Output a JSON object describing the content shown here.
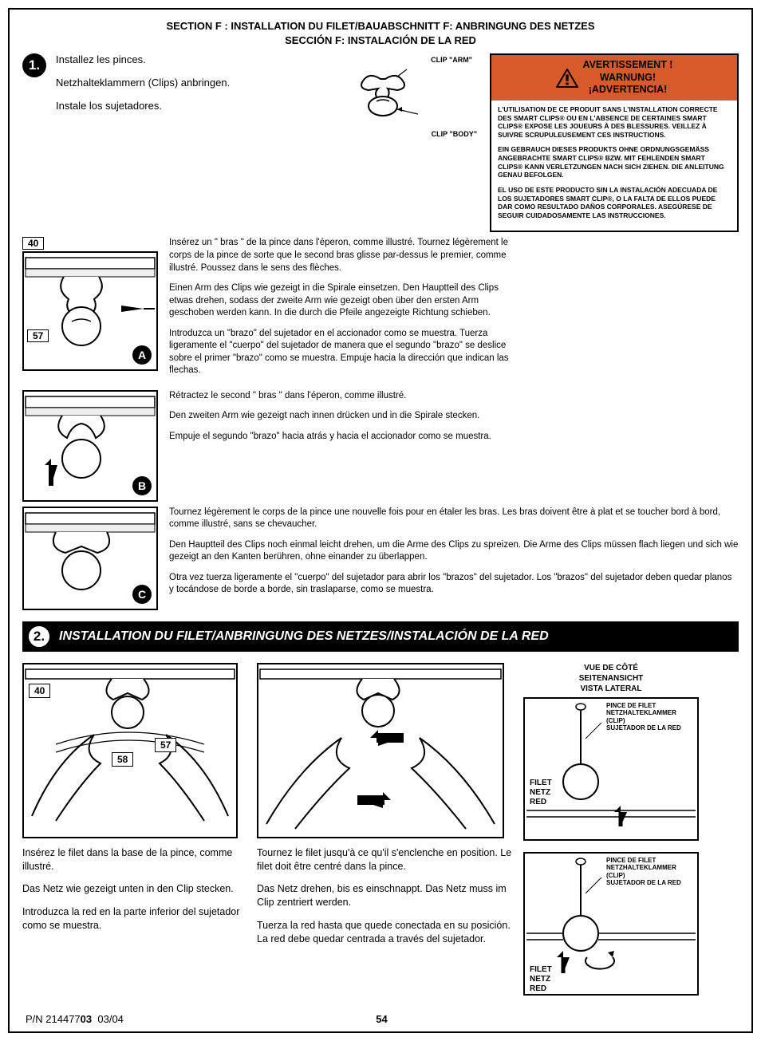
{
  "header": {
    "line1": "SECTION F : INSTALLATION DU FILET/BAUABSCHNITT F: ANBRINGUNG DES NETZES",
    "line2": "SECCIÓN F: INSTALACIÓN DE LA RED"
  },
  "step1": {
    "num": "1.",
    "intro": {
      "fr": "Installez les pinces.",
      "de": "Netzhalteklammern (Clips) anbringen.",
      "es": "Instale los sujetadores."
    },
    "clip": {
      "arm_label": "CLIP \"ARM\"",
      "body_label": "CLIP \"BODY\""
    },
    "warning": {
      "title": "AVERTISSEMENT ! WARNUNG! ¡ADVERTENCIA!",
      "fr": "L'UTILISATION DE CE PRODUIT SANS L'INSTALLATION CORRECTE DES SMART CLIPS® OU EN L'ABSENCE DE CERTAINES SMART CLIPS® EXPOSE LES JOUEURS À DES BLESSURES. VEILLEZ À SUIVRE SCRUPULEUSEMENT CES INSTRUCTIONS.",
      "de": "EIN GEBRAUCH DIESES PRODUKTS OHNE ORDNUNGSGEMÄSS ANGEBRACHTE SMART CLIPS® BZW. MIT FEHLENDEN SMART CLIPS® KANN VERLETZUNGEN NACH SICH ZIEHEN. DIE ANLEITUNG GENAU BEFOLGEN.",
      "es": "EL USO DE ESTE PRODUCTO SIN LA INSTALACIÓN ADECUADA DE LOS SUJETADORES SMART CLIP®, O LA FALTA DE ELLOS PUEDE DAR COMO RESULTADO DAÑOS CORPORALES. ASEGÚRESE DE SEGUIR CUIDADOSAMENTE LAS INSTRUCCIONES."
    },
    "a": {
      "part40": "40",
      "part57": "57",
      "letter": "A",
      "fr": "Insérez un \" bras \" de la pince dans l'éperon, comme illustré. Tournez légèrement le corps de la pince de sorte que le second bras glisse par-dessus le premier, comme illustré. Poussez dans le sens des flèches.",
      "de": "Einen Arm des Clips wie gezeigt in die Spirale einsetzen. Den Hauptteil des Clips etwas drehen, sodass der zweite Arm wie gezeigt oben über den ersten Arm geschoben werden kann. In die durch die Pfeile angezeigte Richtung schieben.",
      "es": "Introduzca un \"brazo\" del sujetador en el accionador como se muestra. Tuerza ligeramente el \"cuerpo\" del sujetador de manera que el segundo \"brazo\" se deslice sobre el primer \"brazo\" como se muestra. Empuje hacia la dirección que indican las flechas."
    },
    "b": {
      "letter": "B",
      "fr": "Rétractez le second \" bras \" dans l'éperon, comme illustré.",
      "de": "Den zweiten Arm wie gezeigt nach innen drücken und in die Spirale stecken.",
      "es": "Empuje el segundo \"brazo\" hacia atrás y hacia el accionador como se muestra."
    },
    "c": {
      "letter": "C",
      "fr": "Tournez légèrement le corps de la pince une nouvelle fois pour en étaler les bras. Les bras doivent être à plat et se toucher bord à bord, comme illustré, sans se chevaucher.",
      "de": "Den Hauptteil des Clips noch einmal leicht drehen, um die Arme des Clips zu spreizen. Die Arme des Clips müssen flach liegen und sich wie gezeigt an den Kanten berühren, ohne einander zu überlappen.",
      "es": "Otra vez tuerza ligeramente el \"cuerpo\" del sujetador para abrir los \"brazos\" del sujetador. Los \"brazos\" del sujetador deben quedar planos y tocándose de borde a borde, sin traslaparse, como se muestra."
    }
  },
  "step2": {
    "num": "2.",
    "title": "INSTALLATION DU FILET/ANBRINGUNG DES NETZES/INSTALACIÓN DE LA RED",
    "left": {
      "part40": "40",
      "part57": "57",
      "part58": "58",
      "fr": "Insérez le filet dans la base de la pince, comme illustré.",
      "de": "Das Netz wie gezeigt unten in den Clip stecken.",
      "es": "Introduzca la red en la parte inferior del sujetador como se muestra."
    },
    "mid": {
      "fr": "Tournez le filet jusqu'à ce qu'il s'enclenche en position. Le filet doit être centré dans la pince.",
      "de": "Das Netz drehen, bis es einschnappt. Das Netz muss im Clip zentriert werden.",
      "es": "Tuerza la red hasta que quede conectada en su posición. La red debe quedar centrada a través del sujetador."
    },
    "side": {
      "title": "VUE DE CÔTÉ SEITENANSICHT VISTA LATERAL",
      "clip_label": "PINCE DE FILET NETZHALTEKLAMMER (CLIP) SUJETADOR DE LA RED",
      "net_label": "FILET NETZ RED"
    }
  },
  "footer": {
    "pn_prefix": "P/N 214477",
    "pn_bold": "03",
    "date": "03/04",
    "page": "54"
  },
  "colors": {
    "warning_bg": "#d85a2a",
    "black": "#000000",
    "white": "#ffffff"
  }
}
